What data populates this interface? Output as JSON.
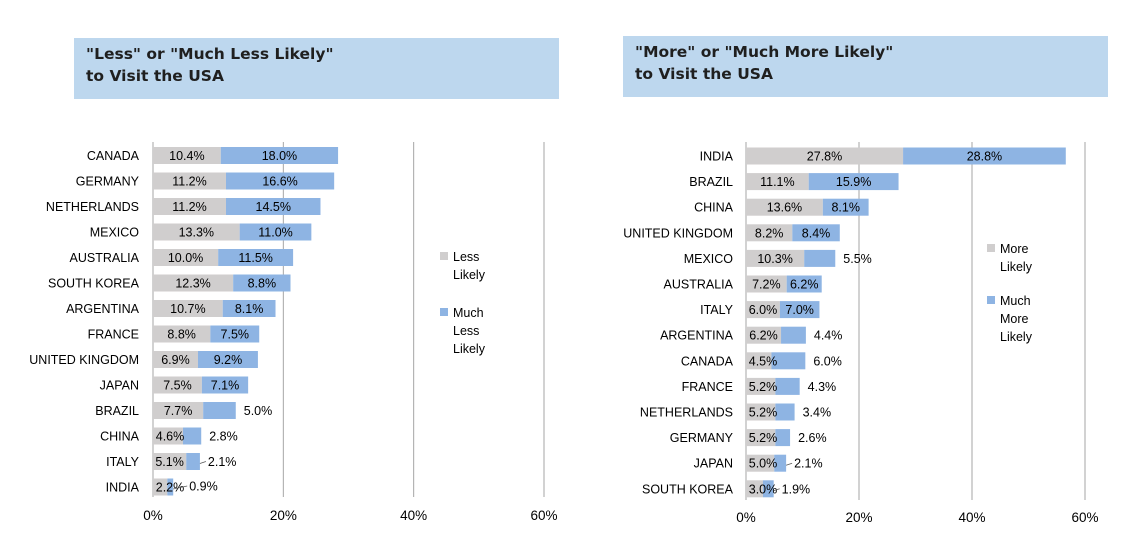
{
  "chart_data": [
    {
      "type": "bar",
      "orientation": "horizontal",
      "stacked": true,
      "title_lines": [
        "\"Less\" or \"Much Less Likely\"",
        "to Visit the USA"
      ],
      "categories": [
        "CANADA",
        "GERMANY",
        "NETHERLANDS",
        "MEXICO",
        "AUSTRALIA",
        "SOUTH KOREA",
        "ARGENTINA",
        "FRANCE",
        "UNITED KINGDOM",
        "JAPAN",
        "BRAZIL",
        "CHINA",
        "ITALY",
        "INDIA"
      ],
      "series": [
        {
          "name": "Less Likely",
          "color": "#d0cece",
          "values": [
            10.4,
            11.2,
            11.2,
            13.3,
            10.0,
            12.3,
            10.7,
            8.8,
            6.9,
            7.5,
            7.7,
            4.6,
            5.1,
            2.2
          ],
          "labels": [
            "10.4%",
            "11.2%",
            "11.2%",
            "13.3%",
            "10.0%",
            "12.3%",
            "10.7%",
            "8.8%",
            "6.9%",
            "7.5%",
            "7.7%",
            "4.6%",
            "5.1%",
            "2.2%"
          ]
        },
        {
          "name": "Much Less Likely",
          "color": "#8eb4e3",
          "values": [
            18.0,
            16.6,
            14.5,
            11.0,
            11.5,
            8.8,
            8.1,
            7.5,
            9.2,
            7.1,
            5.0,
            2.8,
            2.1,
            0.9
          ],
          "labels": [
            "18.0%",
            "16.6%",
            "14.5%",
            "11.0%",
            "11.5%",
            "8.8%",
            "8.1%",
            "7.5%",
            "9.2%",
            "7.1%",
            "5.0%",
            "2.8%",
            "2.1%",
            "0.9%"
          ]
        }
      ],
      "legend_lines": [
        [
          "Less Likely"
        ],
        [
          "Much Less",
          "Likely"
        ]
      ],
      "xlim": [
        0,
        60
      ],
      "xticks": [
        "0%",
        "20%",
        "40%",
        "60%"
      ],
      "xgrid": true,
      "legend_position": "right"
    },
    {
      "type": "bar",
      "orientation": "horizontal",
      "stacked": true,
      "title_lines": [
        "\"More\" or \"Much More Likely\"",
        "to Visit the USA"
      ],
      "categories": [
        "INDIA",
        "BRAZIL",
        "CHINA",
        "UNITED KINGDOM",
        "MEXICO",
        "AUSTRALIA",
        "ITALY",
        "ARGENTINA",
        "CANADA",
        "FRANCE",
        "NETHERLANDS",
        "GERMANY",
        "JAPAN",
        "SOUTH KOREA"
      ],
      "series": [
        {
          "name": "More Likely",
          "color": "#d0cece",
          "values": [
            27.8,
            11.1,
            13.6,
            8.2,
            10.3,
            7.2,
            6.0,
            6.2,
            4.5,
            5.2,
            5.2,
            5.2,
            5.0,
            3.0
          ],
          "labels": [
            "27.8%",
            "11.1%",
            "13.6%",
            "8.2%",
            "10.3%",
            "7.2%",
            "6.0%",
            "6.2%",
            "4.5%",
            "5.2%",
            "5.2%",
            "5.2%",
            "5.0%",
            "3.0%"
          ]
        },
        {
          "name": "Much More Likely",
          "color": "#8eb4e3",
          "values": [
            28.8,
            15.9,
            8.1,
            8.4,
            5.5,
            6.2,
            7.0,
            4.4,
            6.0,
            4.3,
            3.4,
            2.6,
            2.1,
            1.9
          ],
          "labels": [
            "28.8%",
            "15.9%",
            "8.1%",
            "8.4%",
            "5.5%",
            "6.2%",
            "7.0%",
            "4.4%",
            "6.0%",
            "4.3%",
            "3.4%",
            "2.6%",
            "2.1%",
            "1.9%"
          ]
        }
      ],
      "legend_lines": [
        [
          "More Likely"
        ],
        [
          "Much More",
          "Likely"
        ]
      ],
      "xlim": [
        0,
        60
      ],
      "xticks": [
        "0%",
        "20%",
        "40%",
        "60%"
      ],
      "xgrid": true,
      "legend_position": "right"
    }
  ]
}
